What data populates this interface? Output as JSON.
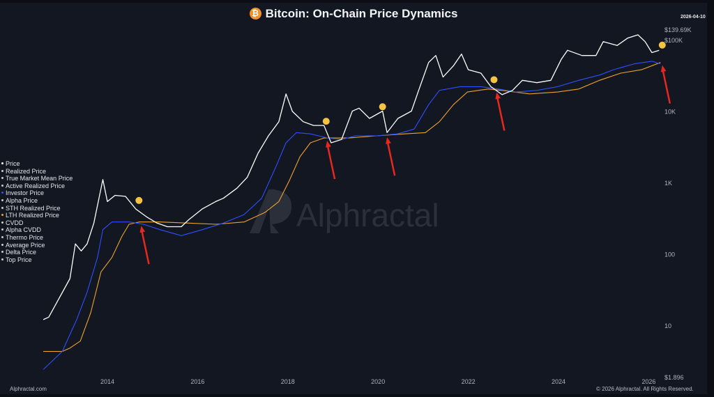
{
  "header": {
    "title": "Bitcoin: On-Chain Price Dynamics",
    "icon": "bitcoin-icon",
    "date": "2026-04-10"
  },
  "legend": [
    {
      "label": "Price",
      "color": "#ffffff"
    },
    {
      "label": "Realized Price",
      "color": "#cccccc"
    },
    {
      "label": "True Market Mean Price",
      "color": "#cccccc"
    },
    {
      "label": "Active Realized Price",
      "color": "#cccccc"
    },
    {
      "label": "Investor Price",
      "color": "#2f4fff"
    },
    {
      "label": "Alpha Price",
      "color": "#cccccc"
    },
    {
      "label": "STH Realized Price",
      "color": "#cccccc"
    },
    {
      "label": "LTH Realized Price",
      "color": "#f0a32a"
    },
    {
      "label": "CVDD",
      "color": "#cccccc"
    },
    {
      "label": "Alpha CVDD",
      "color": "#cccccc"
    },
    {
      "label": "Thermo Price",
      "color": "#cccccc"
    },
    {
      "label": "Average Price",
      "color": "#cccccc"
    },
    {
      "label": "Delta Price",
      "color": "#cccccc"
    },
    {
      "label": "Top Price",
      "color": "#cccccc"
    }
  ],
  "watermark": "Alphractal",
  "footer": {
    "left": "Alphractal.com",
    "right": "© 2026 Alphractal. All Rights Reserved."
  },
  "chart_data": {
    "type": "line",
    "title": "Bitcoin: On-Chain Price Dynamics",
    "y_scale": "log",
    "ylim": [
      1.896,
      139690
    ],
    "xlim": [
      2012.5,
      2026.4
    ],
    "grid": false,
    "legend_position": "left",
    "y_ticks": [
      {
        "value": 139690,
        "label": "$139.69K"
      },
      {
        "value": 100000,
        "label": "$100K"
      },
      {
        "value": 10000,
        "label": "10K"
      },
      {
        "value": 1000,
        "label": "1K"
      },
      {
        "value": 100,
        "label": "100"
      },
      {
        "value": 10,
        "label": "10"
      },
      {
        "value": 1.896,
        "label": "$1.896"
      }
    ],
    "x_ticks": [
      {
        "value": 2014,
        "label": "2014"
      },
      {
        "value": 2016,
        "label": "2016"
      },
      {
        "value": 2018,
        "label": "2018"
      },
      {
        "value": 2020,
        "label": "2020"
      },
      {
        "value": 2022,
        "label": "2022"
      },
      {
        "value": 2024,
        "label": "2024"
      },
      {
        "value": 2026,
        "label": "2026"
      }
    ],
    "series": [
      {
        "name": "Price",
        "color": "#ffffff",
        "x": [
          2012.58,
          2012.7,
          2013.17,
          2013.29,
          2013.42,
          2013.55,
          2013.7,
          2013.9,
          2014.0,
          2014.17,
          2014.4,
          2014.63,
          2014.87,
          2015.1,
          2015.33,
          2015.64,
          2015.8,
          2016.1,
          2016.4,
          2016.57,
          2016.87,
          2017.1,
          2017.34,
          2017.57,
          2017.8,
          2017.96,
          2018.1,
          2018.34,
          2018.57,
          2018.8,
          2018.96,
          2019.19,
          2019.43,
          2019.58,
          2019.81,
          2020.1,
          2020.2,
          2020.44,
          2020.74,
          2020.9,
          2021.12,
          2021.28,
          2021.44,
          2021.67,
          2021.85,
          2022.0,
          2022.28,
          2022.5,
          2022.75,
          2022.98,
          2023.2,
          2023.52,
          2023.83,
          2024.06,
          2024.2,
          2024.52,
          2024.83,
          2024.99,
          2025.3,
          2025.53,
          2025.76,
          2025.92,
          2026.07,
          2026.23
        ],
        "y": [
          12,
          13,
          45,
          138,
          110,
          138,
          270,
          1100,
          540,
          660,
          640,
          425,
          330,
          270,
          240,
          240,
          300,
          425,
          540,
          600,
          830,
          1180,
          2570,
          4500,
          7100,
          17400,
          9900,
          7100,
          6300,
          6300,
          3600,
          4000,
          10000,
          11000,
          7900,
          10000,
          5000,
          7900,
          10000,
          19500,
          48000,
          60000,
          30000,
          43000,
          63000,
          38000,
          34000,
          22000,
          17000,
          19500,
          27000,
          25000,
          27000,
          53000,
          71000,
          60000,
          60000,
          94000,
          83000,
          105000,
          117000,
          94000,
          66000,
          71000
        ]
      },
      {
        "name": "Investor Price",
        "color": "#2f4fff",
        "x": [
          2012.58,
          2013.0,
          2013.32,
          2013.55,
          2013.78,
          2013.9,
          2014.1,
          2014.48,
          2014.8,
          2015.17,
          2015.64,
          2016.1,
          2016.57,
          2017.03,
          2017.42,
          2017.73,
          2017.96,
          2018.19,
          2018.5,
          2018.88,
          2019.19,
          2019.5,
          2019.97,
          2020.43,
          2020.8,
          2021.12,
          2021.36,
          2021.82,
          2022.28,
          2022.67,
          2023.06,
          2023.52,
          2023.98,
          2024.45,
          2024.91,
          2025.22,
          2025.68,
          2026.07,
          2026.26
        ],
        "y": [
          2.4,
          4.3,
          12,
          29,
          89,
          218,
          280,
          280,
          260,
          218,
          180,
          218,
          270,
          355,
          600,
          1630,
          3600,
          5000,
          4800,
          4200,
          4000,
          4500,
          4500,
          4800,
          5600,
          12300,
          19500,
          22000,
          22000,
          20400,
          18500,
          19500,
          22000,
          27000,
          32000,
          38000,
          46000,
          50000,
          46000
        ]
      },
      {
        "name": "LTH Realized Price",
        "color": "#f0a32a",
        "x": [
          2012.58,
          2013.0,
          2013.17,
          2013.4,
          2013.63,
          2013.86,
          2014.1,
          2014.32,
          2014.48,
          2014.71,
          2015.17,
          2015.8,
          2016.41,
          2017.03,
          2017.49,
          2017.8,
          2018.03,
          2018.27,
          2018.5,
          2018.8,
          2019.35,
          2019.97,
          2020.59,
          2021.05,
          2021.36,
          2021.67,
          2021.98,
          2022.44,
          2022.75,
          2023.36,
          2023.98,
          2024.45,
          2024.91,
          2025.38,
          2025.84,
          2026.26
        ],
        "y": [
          4.3,
          4.3,
          4.8,
          6,
          15,
          56,
          89,
          175,
          260,
          280,
          280,
          270,
          260,
          280,
          380,
          540,
          1050,
          2300,
          3600,
          4200,
          4200,
          4500,
          4800,
          5000,
          7100,
          12300,
          18500,
          20400,
          19500,
          17400,
          18500,
          20400,
          27000,
          34000,
          38000,
          48000
        ]
      }
    ],
    "annotations": {
      "markers": [
        {
          "x": 2014.7,
          "y": 560
        },
        {
          "x": 2018.85,
          "y": 7200
        },
        {
          "x": 2020.1,
          "y": 11500
        },
        {
          "x": 2022.57,
          "y": 27500
        },
        {
          "x": 2026.3,
          "y": 84000
        }
      ],
      "marker_color": "#f5c242",
      "arrows": [
        {
          "x": 2014.75,
          "y": 270
        },
        {
          "x": 2018.87,
          "y": 4200
        },
        {
          "x": 2020.2,
          "y": 4700
        },
        {
          "x": 2022.63,
          "y": 20000
        },
        {
          "x": 2026.3,
          "y": 48000
        }
      ],
      "arrow_color": "#e8281e"
    }
  }
}
